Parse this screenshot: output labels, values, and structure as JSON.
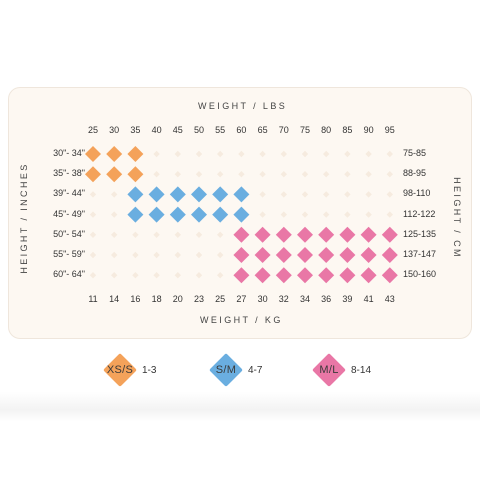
{
  "chart_data": {
    "type": "heatmap",
    "top_axis_title": "WEIGHT / LBS",
    "bottom_axis_title": "WEIGHT / KG",
    "left_axis_title": "HEIGHT / INCHES",
    "right_axis_title": "HEIGHT / CM",
    "weight_lbs": [
      "25",
      "30",
      "35",
      "40",
      "45",
      "50",
      "55",
      "60",
      "65",
      "70",
      "75",
      "80",
      "85",
      "90",
      "95"
    ],
    "weight_kg": [
      "11",
      "14",
      "16",
      "18",
      "20",
      "23",
      "25",
      "27",
      "30",
      "32",
      "34",
      "36",
      "39",
      "41",
      "43"
    ],
    "height_inches": [
      "30\"- 34\"",
      "35\"- 38\"",
      "39\"- 44\"",
      "45\"- 49\"",
      "50\"- 54\"",
      "55\"- 59\"",
      "60\"- 64\""
    ],
    "height_cm": [
      "75-85",
      "88-95",
      "98-110",
      "112-122",
      "125-135",
      "137-147",
      "150-160"
    ],
    "cells": [
      {
        "row": 0,
        "size": "XS/S",
        "from": 0,
        "to": 2
      },
      {
        "row": 1,
        "size": "XS/S",
        "from": 0,
        "to": 2
      },
      {
        "row": 2,
        "size": "S/M",
        "from": 2,
        "to": 7
      },
      {
        "row": 3,
        "size": "S/M",
        "from": 2,
        "to": 7
      },
      {
        "row": 4,
        "size": "M/L",
        "from": 7,
        "to": 14
      },
      {
        "row": 5,
        "size": "M/L",
        "from": 7,
        "to": 14
      },
      {
        "row": 6,
        "size": "M/L",
        "from": 7,
        "to": 14
      }
    ],
    "legend": [
      {
        "size": "XS/S",
        "range": "1-3",
        "color": "#f4a25a"
      },
      {
        "size": "S/M",
        "range": "4-7",
        "color": "#6aaee0"
      },
      {
        "size": "M/L",
        "range": "8-14",
        "color": "#e977a6"
      }
    ],
    "empty_color": "#f6ebdf"
  }
}
